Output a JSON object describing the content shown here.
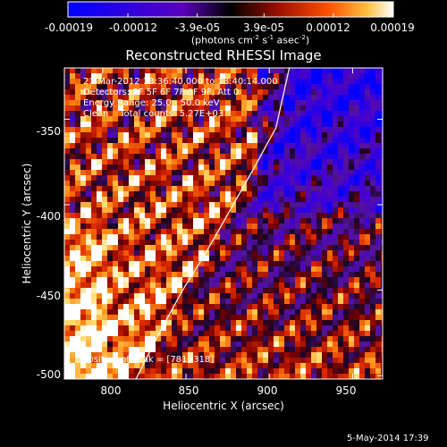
{
  "colorbar": {
    "tick_labels": [
      "-0.00019",
      "-0.00012",
      "-3.9e-05",
      "3.9e-05",
      "0.00012",
      "0.00019"
    ],
    "ticks": [
      -0.00019,
      -0.00012,
      -3.9e-05,
      3.9e-05,
      0.00012,
      0.00019
    ],
    "range": [
      -0.00019,
      0.00019
    ],
    "unit_label_parts": [
      "(photons cm",
      "-2",
      " s",
      "-1",
      " asec",
      "-2",
      ")"
    ]
  },
  "chart_data": {
    "type": "heatmap",
    "title": "Reconstructed RHESSI Image",
    "xlabel": "Heliocentric X (arcsec)",
    "ylabel": "Heliocentric Y (arcsec)",
    "xlim": [
      777,
      968
    ],
    "ylim": [
      -502,
      -320
    ],
    "x_ticks": [
      800,
      850,
      900,
      950
    ],
    "y_ticks": [
      -350,
      -400,
      -450,
      -500
    ],
    "x_tick_labels": [
      "800",
      "850",
      "900",
      "950"
    ],
    "y_tick_labels": [
      "-350",
      "-400",
      "-450",
      "-500"
    ],
    "annotations": [
      "21-Mar-2012 13:36:40.000 to 13:40:14.000",
      "Detectors: 3F 5F 6F 7F 8F 9F, Att 0",
      "Energy Range: 25.0 - 50.0 keV",
      "Clean    Total counts: 5.27E+03"
    ],
    "peak_label": "Position of Peak = [781,-318]",
    "peak_position": [
      781,
      -318
    ],
    "limb_curve": {
      "x": [
        820,
        834,
        848,
        862,
        876,
        890,
        904,
        912
      ],
      "y": [
        -502,
        -475,
        -450,
        -428,
        -404,
        -380,
        -355,
        -320
      ]
    },
    "colormap": [
      "#0000ff",
      "#5500c8",
      "#400080",
      "#000000",
      "#800000",
      "#ff4000",
      "#ffc000",
      "#ffffff"
    ]
  },
  "footer": {
    "date": "5-May-2014 17:39"
  }
}
